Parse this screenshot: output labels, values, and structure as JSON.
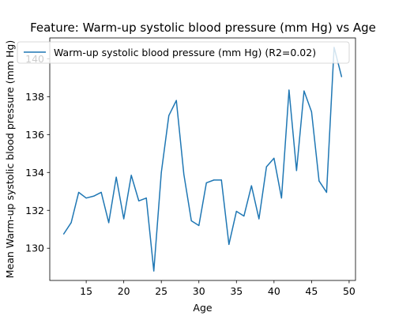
{
  "chart_data": {
    "type": "line",
    "title": "Feature: Warm-up systolic blood pressure (mm Hg) vs Age",
    "xlabel": "Age",
    "ylabel": "Mean Warm-up systolic blood pressure (mm Hg)",
    "xlim": [
      10.15,
      50.85
    ],
    "ylim": [
      128.3,
      141.1
    ],
    "xticks": [
      15,
      20,
      25,
      30,
      35,
      40,
      45,
      50
    ],
    "yticks": [
      130,
      132,
      134,
      136,
      138,
      140
    ],
    "grid": false,
    "legend_position": "top",
    "series": [
      {
        "name": "Warm-up systolic blood pressure (mm Hg) (R2=0.02)",
        "color": "#1f77b4",
        "x": [
          12,
          13,
          14,
          15,
          16,
          17,
          18,
          19,
          20,
          21,
          22,
          23,
          24,
          25,
          26,
          27,
          28,
          29,
          30,
          31,
          32,
          33,
          34,
          35,
          36,
          37,
          38,
          39,
          40,
          41,
          42,
          43,
          44,
          45,
          46,
          47,
          48,
          49
        ],
        "y": [
          130.75,
          131.35,
          132.95,
          132.65,
          132.75,
          132.95,
          131.35,
          133.75,
          131.55,
          133.85,
          132.5,
          132.65,
          128.8,
          134.0,
          137.0,
          137.8,
          133.9,
          131.45,
          131.2,
          133.45,
          133.6,
          133.6,
          130.2,
          131.95,
          131.7,
          133.3,
          131.55,
          134.3,
          134.75,
          132.65,
          138.35,
          134.1,
          138.3,
          137.2,
          133.55,
          132.95,
          140.6,
          139.05
        ]
      }
    ]
  }
}
